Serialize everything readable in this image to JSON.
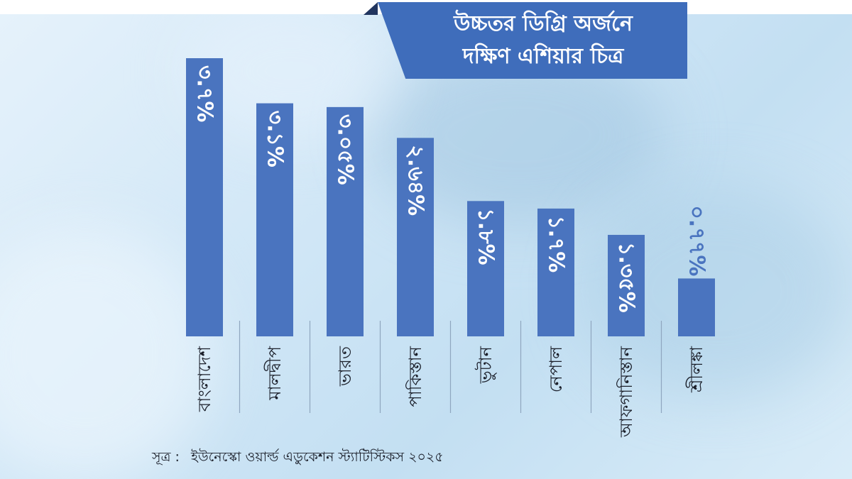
{
  "title": {
    "line1": "উচ্চতর ডিগ্রি অর্জনে",
    "line2": "দক্ষিণ এশিয়ার চিত্র"
  },
  "source": {
    "label": "সূত্র :",
    "text": "ইউনেস্কো ওয়ার্ল্ড এডুকেশন স্ট্যাটিস্টিকস ২০২৫"
  },
  "colors": {
    "bar": "#4a74bf",
    "banner": "#3f6dbb",
    "label_inside": "#ffffff",
    "label_outside": "#4a74bf"
  },
  "chart_data": {
    "type": "bar",
    "orientation": "vertical",
    "categories": [
      "বাংলাদেশ",
      "মালদ্বীপ",
      "ভারত",
      "পাকিস্তান",
      "ভুটান",
      "নেপাল",
      "আফগানিস্তান",
      "শ্রীলঙ্কা"
    ],
    "values": [
      3.7,
      3.1,
      3.05,
      2.64,
      1.8,
      1.7,
      1.35,
      0.77
    ],
    "value_labels": [
      "৩.৭%",
      "৩.১%",
      "৩.০৫%",
      "২.৬৪%",
      "১.৮%",
      "১.৭%",
      "১.৩৫%",
      "০.৭৭%"
    ],
    "ylim": [
      0,
      3.7
    ],
    "grid": false,
    "legend": "none",
    "ylabel": "",
    "xlabel": ""
  }
}
